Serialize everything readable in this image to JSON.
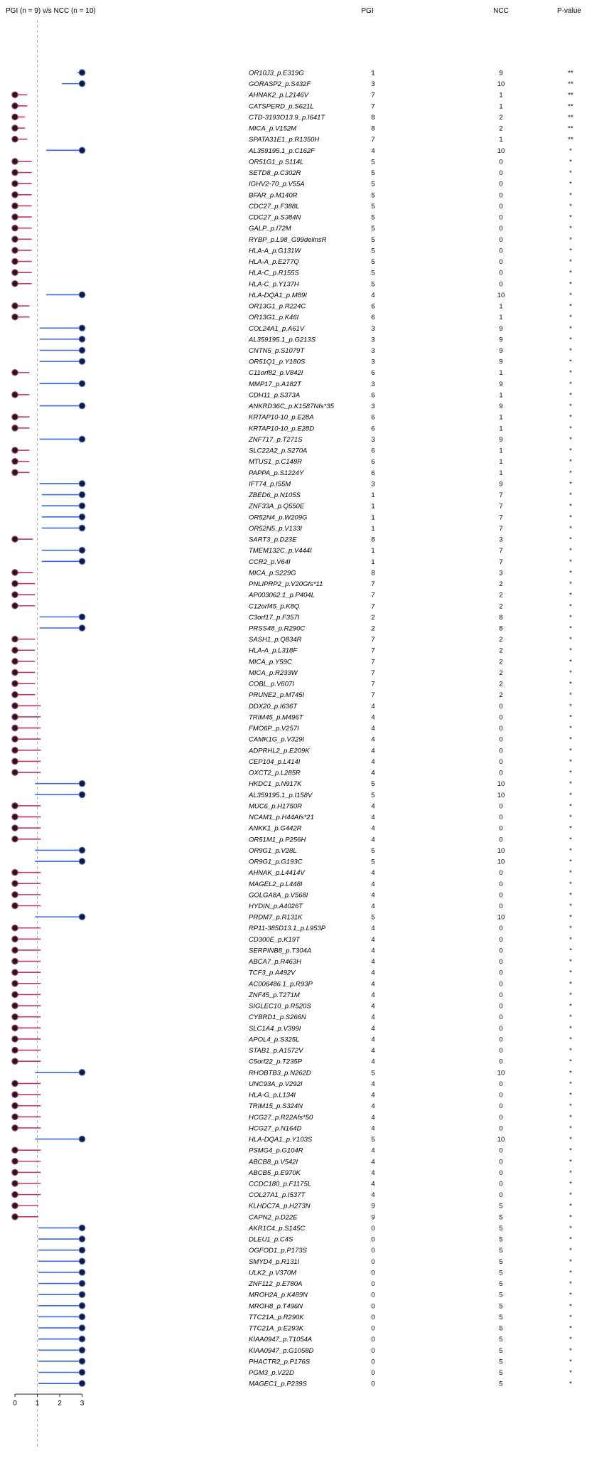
{
  "chart_data": {
    "type": "forest",
    "title": "PGI (n = 9) v/s NCC (n = 10)",
    "column_headers": {
      "pgi": "PGI",
      "ncc": "NCC",
      "pvalue": "P-value"
    },
    "x_ticks": [
      "0",
      "1",
      "2",
      "3"
    ],
    "xlim": [
      0,
      3
    ],
    "reference_line_x": 1,
    "colors": {
      "higher_in_ncc": "#3a67d8",
      "higher_in_pgi": "#c2385a",
      "dot": "#1a1a2e"
    },
    "rows": [
      {
        "gene": "OR10J3_p.E319G",
        "pgi": "1",
        "ncc": "9",
        "p": "**",
        "lo": 2.8,
        "hi": 3.15,
        "dot": 3
      },
      {
        "gene": "GORASP2_p.S432F",
        "pgi": "3",
        "ncc": "10",
        "p": "**",
        "lo": 2.1,
        "hi": 3.15,
        "dot": 3
      },
      {
        "gene": "AHNAK2_p.L2146V",
        "pgi": "7",
        "ncc": "1",
        "p": "**",
        "lo": 0,
        "hi": 0.55,
        "dot": 0
      },
      {
        "gene": "CATSPERD_p.S621L",
        "pgi": "7",
        "ncc": "1",
        "p": "**",
        "lo": 0,
        "hi": 0.55,
        "dot": 0
      },
      {
        "gene": "CTD-3193O13.9_p.I641T",
        "pgi": "8",
        "ncc": "2",
        "p": "**",
        "lo": 0,
        "hi": 0.45,
        "dot": 0
      },
      {
        "gene": "MICA_p.V152M",
        "pgi": "8",
        "ncc": "2",
        "p": "**",
        "lo": 0,
        "hi": 0.45,
        "dot": 0
      },
      {
        "gene": "SPATA31E1_p.R1350H",
        "pgi": "7",
        "ncc": "1",
        "p": "**",
        "lo": 0,
        "hi": 0.55,
        "dot": 0
      },
      {
        "gene": "AL359195.1_p.C162F",
        "pgi": "4",
        "ncc": "10",
        "p": "*",
        "lo": 1.4,
        "hi": 3.15,
        "dot": 3
      },
      {
        "gene": "OR51G1_p.S114L",
        "pgi": "5",
        "ncc": "0",
        "p": "*",
        "lo": 0,
        "hi": 0.75,
        "dot": 0
      },
      {
        "gene": "SETD8_p.C302R",
        "pgi": "5",
        "ncc": "0",
        "p": "*",
        "lo": 0,
        "hi": 0.75,
        "dot": 0
      },
      {
        "gene": "IGHV2-70_p.V55A",
        "pgi": "5",
        "ncc": "0",
        "p": "*",
        "lo": 0,
        "hi": 0.75,
        "dot": 0
      },
      {
        "gene": "BFAR_p.M140R",
        "pgi": "5",
        "ncc": "0",
        "p": "*",
        "lo": 0,
        "hi": 0.75,
        "dot": 0
      },
      {
        "gene": "CDC27_p.F388L",
        "pgi": "5",
        "ncc": "0",
        "p": "*",
        "lo": 0,
        "hi": 0.75,
        "dot": 0
      },
      {
        "gene": "CDC27_p.S384N",
        "pgi": "5",
        "ncc": "0",
        "p": "*",
        "lo": 0,
        "hi": 0.75,
        "dot": 0
      },
      {
        "gene": "GALP_p.I72M",
        "pgi": "5",
        "ncc": "0",
        "p": "*",
        "lo": 0,
        "hi": 0.75,
        "dot": 0
      },
      {
        "gene": "RYBP_p.L98_G99delinsR",
        "pgi": "5",
        "ncc": "0",
        "p": "*",
        "lo": 0,
        "hi": 0.75,
        "dot": 0
      },
      {
        "gene": "HLA-A_p.G131W",
        "pgi": "5",
        "ncc": "0",
        "p": "*",
        "lo": 0,
        "hi": 0.75,
        "dot": 0
      },
      {
        "gene": "HLA-A_p.E277Q",
        "pgi": "5",
        "ncc": "0",
        "p": "*",
        "lo": 0,
        "hi": 0.75,
        "dot": 0
      },
      {
        "gene": "HLA-C_p.R155S",
        "pgi": "5",
        "ncc": "0",
        "p": "*",
        "lo": 0,
        "hi": 0.75,
        "dot": 0
      },
      {
        "gene": "HLA-C_p.Y137H",
        "pgi": "5",
        "ncc": "0",
        "p": "*",
        "lo": 0,
        "hi": 0.75,
        "dot": 0
      },
      {
        "gene": "HLA-DQA1_p.M89I",
        "pgi": "4",
        "ncc": "10",
        "p": "*",
        "lo": 1.4,
        "hi": 3.15,
        "dot": 3
      },
      {
        "gene": "OR13G1_p.R224C",
        "pgi": "6",
        "ncc": "1",
        "p": "*",
        "lo": 0,
        "hi": 0.65,
        "dot": 0
      },
      {
        "gene": "OR13G1_p.K46I",
        "pgi": "6",
        "ncc": "1",
        "p": "*",
        "lo": 0,
        "hi": 0.65,
        "dot": 0
      },
      {
        "gene": "COL24A1_p.A61V",
        "pgi": "3",
        "ncc": "9",
        "p": "*",
        "lo": 1.1,
        "hi": 3.15,
        "dot": 3
      },
      {
        "gene": "AL359195.1_p.G213S",
        "pgi": "3",
        "ncc": "9",
        "p": "*",
        "lo": 1.1,
        "hi": 3.15,
        "dot": 3
      },
      {
        "gene": "CNTN5_p.S1079T",
        "pgi": "3",
        "ncc": "9",
        "p": "*",
        "lo": 1.1,
        "hi": 3.15,
        "dot": 3
      },
      {
        "gene": "OR51Q1_p.Y180S",
        "pgi": "3",
        "ncc": "9",
        "p": "*",
        "lo": 1.1,
        "hi": 3.15,
        "dot": 3
      },
      {
        "gene": "C11orf82_p.V842I",
        "pgi": "6",
        "ncc": "1",
        "p": "*",
        "lo": 0,
        "hi": 0.65,
        "dot": 0
      },
      {
        "gene": "MMP17_p.A182T",
        "pgi": "3",
        "ncc": "9",
        "p": "*",
        "lo": 1.1,
        "hi": 3.15,
        "dot": 3
      },
      {
        "gene": "CDH11_p.S373A",
        "pgi": "6",
        "ncc": "1",
        "p": "*",
        "lo": 0,
        "hi": 0.65,
        "dot": 0
      },
      {
        "gene": "ANKRD36C_p.K1587Nfs*35",
        "pgi": "3",
        "ncc": "9",
        "p": "*",
        "lo": 1.1,
        "hi": 3.15,
        "dot": 3
      },
      {
        "gene": "KRTAP10-10_p.E28A",
        "pgi": "6",
        "ncc": "1",
        "p": "*",
        "lo": 0,
        "hi": 0.65,
        "dot": 0
      },
      {
        "gene": "KRTAP10-10_p.E28D",
        "pgi": "6",
        "ncc": "1",
        "p": "*",
        "lo": 0,
        "hi": 0.65,
        "dot": 0
      },
      {
        "gene": "ZNF717_p.T271S",
        "pgi": "3",
        "ncc": "9",
        "p": "*",
        "lo": 1.1,
        "hi": 3.15,
        "dot": 3
      },
      {
        "gene": "SLC22A2_p.S270A",
        "pgi": "6",
        "ncc": "1",
        "p": "*",
        "lo": 0,
        "hi": 0.65,
        "dot": 0
      },
      {
        "gene": "MTUS1_p.C148R",
        "pgi": "6",
        "ncc": "1",
        "p": "*",
        "lo": 0,
        "hi": 0.65,
        "dot": 0
      },
      {
        "gene": "PAPPA_p.S1224Y",
        "pgi": "6",
        "ncc": "1",
        "p": "*",
        "lo": 0,
        "hi": 0.65,
        "dot": 0
      },
      {
        "gene": "IFT74_p.I55M",
        "pgi": "3",
        "ncc": "9",
        "p": "*",
        "lo": 1.1,
        "hi": 3.15,
        "dot": 3
      },
      {
        "gene": "ZBED6_p.N105S",
        "pgi": "1",
        "ncc": "7",
        "p": "*",
        "lo": 1.2,
        "hi": 3.15,
        "dot": 3
      },
      {
        "gene": "ZNF33A_p.Q550E",
        "pgi": "1",
        "ncc": "7",
        "p": "*",
        "lo": 1.2,
        "hi": 3.15,
        "dot": 3
      },
      {
        "gene": "OR52N4_p.W209G",
        "pgi": "1",
        "ncc": "7",
        "p": "*",
        "lo": 1.2,
        "hi": 3.15,
        "dot": 3
      },
      {
        "gene": "OR52N5_p.V133I",
        "pgi": "1",
        "ncc": "7",
        "p": "*",
        "lo": 1.2,
        "hi": 3.15,
        "dot": 3
      },
      {
        "gene": "SART3_p.D23E",
        "pgi": "8",
        "ncc": "3",
        "p": "*",
        "lo": 0,
        "hi": 0.8,
        "dot": 0
      },
      {
        "gene": "TMEM132C_p.V444I",
        "pgi": "1",
        "ncc": "7",
        "p": "*",
        "lo": 1.2,
        "hi": 3.15,
        "dot": 3
      },
      {
        "gene": "CCR2_p.V64I",
        "pgi": "1",
        "ncc": "7",
        "p": "*",
        "lo": 1.2,
        "hi": 3.15,
        "dot": 3
      },
      {
        "gene": "MICA_p.S229G",
        "pgi": "8",
        "ncc": "3",
        "p": "*",
        "lo": 0,
        "hi": 0.8,
        "dot": 0
      },
      {
        "gene": "PNLIPRP2_p.V20Gfs*11",
        "pgi": "7",
        "ncc": "2",
        "p": "*",
        "lo": 0,
        "hi": 0.9,
        "dot": 0
      },
      {
        "gene": "AP003062.1_p.P404L",
        "pgi": "7",
        "ncc": "2",
        "p": "*",
        "lo": 0,
        "hi": 0.9,
        "dot": 0
      },
      {
        "gene": "C12orf45_p.K8Q",
        "pgi": "7",
        "ncc": "2",
        "p": "*",
        "lo": 0,
        "hi": 0.9,
        "dot": 0
      },
      {
        "gene": "C3orf17_p.F357I",
        "pgi": "2",
        "ncc": "8",
        "p": "*",
        "lo": 1.1,
        "hi": 3.15,
        "dot": 3
      },
      {
        "gene": "PRSS48_p.R290C",
        "pgi": "2",
        "ncc": "8",
        "p": "*",
        "lo": 1.1,
        "hi": 3.15,
        "dot": 3
      },
      {
        "gene": "SASH1_p.Q834R",
        "pgi": "7",
        "ncc": "2",
        "p": "*",
        "lo": 0,
        "hi": 0.9,
        "dot": 0
      },
      {
        "gene": "HLA-A_p.L318F",
        "pgi": "7",
        "ncc": "2",
        "p": "*",
        "lo": 0,
        "hi": 0.9,
        "dot": 0
      },
      {
        "gene": "MICA_p.Y59C",
        "pgi": "7",
        "ncc": "2",
        "p": "*",
        "lo": 0,
        "hi": 0.9,
        "dot": 0
      },
      {
        "gene": "MICA_p.R233W",
        "pgi": "7",
        "ncc": "2",
        "p": "*",
        "lo": 0,
        "hi": 0.9,
        "dot": 0
      },
      {
        "gene": "COBL_p.V607I",
        "pgi": "7",
        "ncc": "2",
        "p": "*",
        "lo": 0,
        "hi": 0.9,
        "dot": 0
      },
      {
        "gene": "PRUNE2_p.M745I",
        "pgi": "7",
        "ncc": "2",
        "p": "*",
        "lo": 0,
        "hi": 0.9,
        "dot": 0
      },
      {
        "gene": "DDX20_p.I636T",
        "pgi": "4",
        "ncc": "0",
        "p": "*",
        "lo": 0,
        "hi": 1.15,
        "dot": 0
      },
      {
        "gene": "TRIM45_p.M496T",
        "pgi": "4",
        "ncc": "0",
        "p": "*",
        "lo": 0,
        "hi": 1.15,
        "dot": 0
      },
      {
        "gene": "FMO6P_p.V257I",
        "pgi": "4",
        "ncc": "0",
        "p": "*",
        "lo": 0,
        "hi": 1.15,
        "dot": 0
      },
      {
        "gene": "CAMK1G_p.V329I",
        "pgi": "4",
        "ncc": "0",
        "p": "*",
        "lo": 0,
        "hi": 1.15,
        "dot": 0
      },
      {
        "gene": "ADPRHL2_p.E209K",
        "pgi": "4",
        "ncc": "0",
        "p": "*",
        "lo": 0,
        "hi": 1.15,
        "dot": 0
      },
      {
        "gene": "CEP104_p.L414I",
        "pgi": "4",
        "ncc": "0",
        "p": "*",
        "lo": 0,
        "hi": 1.15,
        "dot": 0
      },
      {
        "gene": "OXCT2_p.L285R",
        "pgi": "4",
        "ncc": "0",
        "p": "*",
        "lo": 0,
        "hi": 1.15,
        "dot": 0
      },
      {
        "gene": "HKDC1_p.N917K",
        "pgi": "5",
        "ncc": "10",
        "p": "*",
        "lo": 0.9,
        "hi": 3.15,
        "dot": 3
      },
      {
        "gene": "AL359195.1_p.I158V",
        "pgi": "5",
        "ncc": "10",
        "p": "*",
        "lo": 0.9,
        "hi": 3.15,
        "dot": 3
      },
      {
        "gene": "MUC6_p.H1750R",
        "pgi": "4",
        "ncc": "0",
        "p": "*",
        "lo": 0,
        "hi": 1.15,
        "dot": 0
      },
      {
        "gene": "NCAM1_p.H44Afs*21",
        "pgi": "4",
        "ncc": "0",
        "p": "*",
        "lo": 0,
        "hi": 1.15,
        "dot": 0
      },
      {
        "gene": "ANKK1_p.G442R",
        "pgi": "4",
        "ncc": "0",
        "p": "*",
        "lo": 0,
        "hi": 1.15,
        "dot": 0
      },
      {
        "gene": "OR51M1_p.P256H",
        "pgi": "4",
        "ncc": "0",
        "p": "*",
        "lo": 0,
        "hi": 1.15,
        "dot": 0
      },
      {
        "gene": "OR9G1_p.V28L",
        "pgi": "5",
        "ncc": "10",
        "p": "*",
        "lo": 0.9,
        "hi": 3.15,
        "dot": 3
      },
      {
        "gene": "OR9G1_p.G193C",
        "pgi": "5",
        "ncc": "10",
        "p": "*",
        "lo": 0.9,
        "hi": 3.15,
        "dot": 3
      },
      {
        "gene": "AHNAK_p.L4414V",
        "pgi": "4",
        "ncc": "0",
        "p": "*",
        "lo": 0,
        "hi": 1.15,
        "dot": 0
      },
      {
        "gene": "MAGEL2_p.L448I",
        "pgi": "4",
        "ncc": "0",
        "p": "*",
        "lo": 0,
        "hi": 1.15,
        "dot": 0
      },
      {
        "gene": "GOLGA8A_p.V568I",
        "pgi": "4",
        "ncc": "0",
        "p": "*",
        "lo": 0,
        "hi": 1.15,
        "dot": 0
      },
      {
        "gene": "HYDIN_p.A4026T",
        "pgi": "4",
        "ncc": "0",
        "p": "*",
        "lo": 0,
        "hi": 1.15,
        "dot": 0
      },
      {
        "gene": "PRDM7_p.R131K",
        "pgi": "5",
        "ncc": "10",
        "p": "*",
        "lo": 0.9,
        "hi": 3.15,
        "dot": 3
      },
      {
        "gene": "RP11-385D13.1_p.L953P",
        "pgi": "4",
        "ncc": "0",
        "p": "*",
        "lo": 0,
        "hi": 1.15,
        "dot": 0
      },
      {
        "gene": "CD300E_p.K19T",
        "pgi": "4",
        "ncc": "0",
        "p": "*",
        "lo": 0,
        "hi": 1.15,
        "dot": 0
      },
      {
        "gene": "SERPINB8_p.T304A",
        "pgi": "4",
        "ncc": "0",
        "p": "*",
        "lo": 0,
        "hi": 1.15,
        "dot": 0
      },
      {
        "gene": "ABCA7_p.R463H",
        "pgi": "4",
        "ncc": "0",
        "p": "*",
        "lo": 0,
        "hi": 1.15,
        "dot": 0
      },
      {
        "gene": "TCF3_p.A492V",
        "pgi": "4",
        "ncc": "0",
        "p": "*",
        "lo": 0,
        "hi": 1.15,
        "dot": 0
      },
      {
        "gene": "AC006486.1_p.R93P",
        "pgi": "4",
        "ncc": "0",
        "p": "*",
        "lo": 0,
        "hi": 1.15,
        "dot": 0
      },
      {
        "gene": "ZNF45_p.T271M",
        "pgi": "4",
        "ncc": "0",
        "p": "*",
        "lo": 0,
        "hi": 1.15,
        "dot": 0
      },
      {
        "gene": "SIGLEC10_p.R520S",
        "pgi": "4",
        "ncc": "0",
        "p": "*",
        "lo": 0,
        "hi": 1.15,
        "dot": 0
      },
      {
        "gene": "CYBRD1_p.S266N",
        "pgi": "4",
        "ncc": "0",
        "p": "*",
        "lo": 0,
        "hi": 1.15,
        "dot": 0
      },
      {
        "gene": "SLC1A4_p.V399I",
        "pgi": "4",
        "ncc": "0",
        "p": "*",
        "lo": 0,
        "hi": 1.15,
        "dot": 0
      },
      {
        "gene": "APOL4_p.S325L",
        "pgi": "4",
        "ncc": "0",
        "p": "*",
        "lo": 0,
        "hi": 1.15,
        "dot": 0
      },
      {
        "gene": "STAB1_p.A1572V",
        "pgi": "4",
        "ncc": "0",
        "p": "*",
        "lo": 0,
        "hi": 1.15,
        "dot": 0
      },
      {
        "gene": "C5orf22_p.T235P",
        "pgi": "4",
        "ncc": "0",
        "p": "*",
        "lo": 0,
        "hi": 1.15,
        "dot": 0
      },
      {
        "gene": "RHOBTB3_p.N262D",
        "pgi": "5",
        "ncc": "10",
        "p": "*",
        "lo": 0.9,
        "hi": 3.15,
        "dot": 3
      },
      {
        "gene": "UNC93A_p.V292I",
        "pgi": "4",
        "ncc": "0",
        "p": "*",
        "lo": 0,
        "hi": 1.15,
        "dot": 0
      },
      {
        "gene": "HLA-G_p.L134I",
        "pgi": "4",
        "ncc": "0",
        "p": "*",
        "lo": 0,
        "hi": 1.15,
        "dot": 0
      },
      {
        "gene": "TRIM15_p.S324N",
        "pgi": "4",
        "ncc": "0",
        "p": "*",
        "lo": 0,
        "hi": 1.15,
        "dot": 0
      },
      {
        "gene": "HCG27_p.R22Afs*50",
        "pgi": "4",
        "ncc": "0",
        "p": "*",
        "lo": 0,
        "hi": 1.15,
        "dot": 0
      },
      {
        "gene": "HCG27_p.N164D",
        "pgi": "4",
        "ncc": "0",
        "p": "*",
        "lo": 0,
        "hi": 1.15,
        "dot": 0
      },
      {
        "gene": "HLA-DQA1_p.Y103S",
        "pgi": "5",
        "ncc": "10",
        "p": "*",
        "lo": 0.9,
        "hi": 3.15,
        "dot": 3
      },
      {
        "gene": "PSMG4_p.G104R",
        "pgi": "4",
        "ncc": "0",
        "p": "*",
        "lo": 0,
        "hi": 1.15,
        "dot": 0
      },
      {
        "gene": "ABCB8_p.V542I",
        "pgi": "4",
        "ncc": "0",
        "p": "*",
        "lo": 0,
        "hi": 1.15,
        "dot": 0
      },
      {
        "gene": "ABCB5_p.E970K",
        "pgi": "4",
        "ncc": "0",
        "p": "*",
        "lo": 0,
        "hi": 1.15,
        "dot": 0
      },
      {
        "gene": "CCDC180_p.F1175L",
        "pgi": "4",
        "ncc": "0",
        "p": "*",
        "lo": 0,
        "hi": 1.15,
        "dot": 0
      },
      {
        "gene": "COL27A1_p.I537T",
        "pgi": "4",
        "ncc": "0",
        "p": "*",
        "lo": 0,
        "hi": 1.15,
        "dot": 0
      },
      {
        "gene": "KLHDC7A_p.H273N",
        "pgi": "9",
        "ncc": "5",
        "p": "*",
        "lo": 0,
        "hi": 1.05,
        "dot": 0
      },
      {
        "gene": "CAPN2_p.D22E",
        "pgi": "9",
        "ncc": "5",
        "p": "*",
        "lo": 0,
        "hi": 1.05,
        "dot": 0
      },
      {
        "gene": "AKR1C4_p.S145C",
        "pgi": "0",
        "ncc": "5",
        "p": "*",
        "lo": 1.05,
        "hi": 3.15,
        "dot": 3
      },
      {
        "gene": "DLEU1_p.C4S",
        "pgi": "0",
        "ncc": "5",
        "p": "*",
        "lo": 1.05,
        "hi": 3.15,
        "dot": 3
      },
      {
        "gene": "OGFOD1_p.P173S",
        "pgi": "0",
        "ncc": "5",
        "p": "*",
        "lo": 1.05,
        "hi": 3.15,
        "dot": 3
      },
      {
        "gene": "SMYD4_p.R131I",
        "pgi": "0",
        "ncc": "5",
        "p": "*",
        "lo": 1.05,
        "hi": 3.15,
        "dot": 3
      },
      {
        "gene": "ULK2_p.V370M",
        "pgi": "0",
        "ncc": "5",
        "p": "*",
        "lo": 1.05,
        "hi": 3.15,
        "dot": 3
      },
      {
        "gene": "ZNF112_p.E780A",
        "pgi": "0",
        "ncc": "5",
        "p": "*",
        "lo": 1.05,
        "hi": 3.15,
        "dot": 3
      },
      {
        "gene": "MROH2A_p.K489N",
        "pgi": "0",
        "ncc": "5",
        "p": "*",
        "lo": 1.05,
        "hi": 3.15,
        "dot": 3
      },
      {
        "gene": "MROH8_p.T496N",
        "pgi": "0",
        "ncc": "5",
        "p": "*",
        "lo": 1.05,
        "hi": 3.15,
        "dot": 3
      },
      {
        "gene": "TTC21A_p.R290K",
        "pgi": "0",
        "ncc": "5",
        "p": "*",
        "lo": 1.05,
        "hi": 3.15,
        "dot": 3
      },
      {
        "gene": "TTC21A_p.E293K",
        "pgi": "0",
        "ncc": "5",
        "p": "*",
        "lo": 1.05,
        "hi": 3.15,
        "dot": 3
      },
      {
        "gene": "KIAA0947_p.T1054A",
        "pgi": "0",
        "ncc": "5",
        "p": "*",
        "lo": 1.05,
        "hi": 3.15,
        "dot": 3
      },
      {
        "gene": "KIAA0947_p.G1058D",
        "pgi": "0",
        "ncc": "5",
        "p": "*",
        "lo": 1.05,
        "hi": 3.15,
        "dot": 3
      },
      {
        "gene": "PHACTR2_p.P176S",
        "pgi": "0",
        "ncc": "5",
        "p": "*",
        "lo": 1.05,
        "hi": 3.15,
        "dot": 3
      },
      {
        "gene": "PGM3_p.V22D",
        "pgi": "0",
        "ncc": "5",
        "p": "*",
        "lo": 1.05,
        "hi": 3.15,
        "dot": 3
      },
      {
        "gene": "MAGEC1_p.P239S",
        "pgi": "0",
        "ncc": "5",
        "p": "*",
        "lo": 1.05,
        "hi": 3.15,
        "dot": 3
      }
    ]
  }
}
